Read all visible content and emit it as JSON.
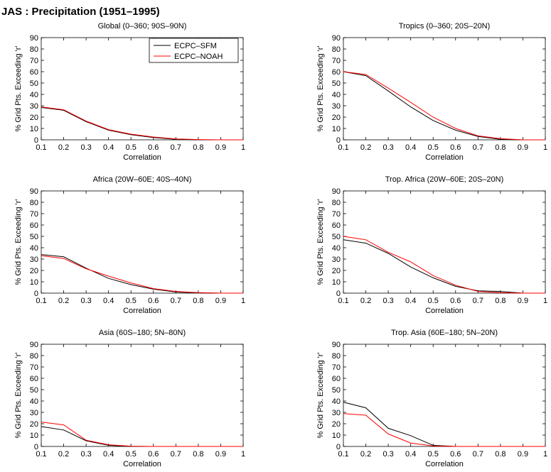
{
  "figure": {
    "title": "JAS : Precipitation (1951–1995)"
  },
  "chart_data": [
    {
      "type": "line",
      "title": "Global (0–360; 90S–90N)",
      "xlabel": "Correlation",
      "ylabel": "% Grid Pts. Exceeding 'r'",
      "xlim": [
        0.1,
        1
      ],
      "ylim": [
        0,
        90
      ],
      "xticks": [
        "0.1",
        "0.2",
        "0.3",
        "0.4",
        "0.5",
        "0.6",
        "0.7",
        "0.8",
        "0.9",
        "1"
      ],
      "yticks": [
        "0",
        "10",
        "20",
        "30",
        "40",
        "50",
        "60",
        "70",
        "80",
        "90"
      ],
      "legend": "top-right",
      "x": [
        0.1,
        0.2,
        0.3,
        0.4,
        0.5,
        0.6,
        0.7,
        0.8,
        0.9,
        1.0
      ],
      "series": [
        {
          "name": "ECPC–SFM",
          "color": "#000000",
          "values": [
            28.5,
            26,
            16,
            8.5,
            4.5,
            2,
            0.5,
            0,
            0,
            0
          ]
        },
        {
          "name": "ECPC–NOAH",
          "color": "#ff0000",
          "values": [
            29,
            26.5,
            16.5,
            9,
            5,
            2.5,
            0.8,
            0.2,
            0,
            0
          ]
        }
      ]
    },
    {
      "type": "line",
      "title": "Tropics (0–360; 20S–20N)",
      "xlabel": "Correlation",
      "ylabel": "% Grid Pts. Exceeding 'r'",
      "xlim": [
        0.1,
        1
      ],
      "ylim": [
        0,
        90
      ],
      "xticks": [
        "0.1",
        "0.2",
        "0.3",
        "0.4",
        "0.5",
        "0.6",
        "0.7",
        "0.8",
        "0.9",
        "1"
      ],
      "yticks": [
        "0",
        "10",
        "20",
        "30",
        "40",
        "50",
        "60",
        "70",
        "80",
        "90"
      ],
      "x": [
        0.1,
        0.2,
        0.3,
        0.4,
        0.5,
        0.6,
        0.7,
        0.8,
        0.9,
        1.0
      ],
      "series": [
        {
          "color": "#000000",
          "values": [
            60,
            56.5,
            43,
            29,
            17,
            8.5,
            3,
            0.5,
            0,
            0
          ]
        },
        {
          "color": "#ff0000",
          "values": [
            60,
            57.5,
            45.5,
            33,
            20,
            10,
            3.5,
            1,
            0,
            0
          ]
        }
      ]
    },
    {
      "type": "line",
      "title": "Africa (20W–60E; 40S–40N)",
      "xlabel": "Correlation",
      "ylabel": "% Grid Pts. Exceeding 'r'",
      "xlim": [
        0.1,
        1
      ],
      "ylim": [
        0,
        90
      ],
      "xticks": [
        "0.1",
        "0.2",
        "0.3",
        "0.4",
        "0.5",
        "0.6",
        "0.7",
        "0.8",
        "0.9",
        "1"
      ],
      "yticks": [
        "0",
        "10",
        "20",
        "30",
        "40",
        "50",
        "60",
        "70",
        "80",
        "90"
      ],
      "x": [
        0.1,
        0.2,
        0.3,
        0.4,
        0.5,
        0.6,
        0.7,
        0.8,
        0.9,
        1.0
      ],
      "series": [
        {
          "color": "#000000",
          "values": [
            34,
            32,
            22,
            13,
            7.5,
            3.5,
            1,
            0.3,
            0,
            0
          ]
        },
        {
          "color": "#ff0000",
          "values": [
            33,
            30.5,
            21.5,
            15,
            9,
            4,
            1.5,
            0.5,
            0,
            0
          ]
        }
      ]
    },
    {
      "type": "line",
      "title": "Trop. Africa (20W–60E; 20S–20N)",
      "xlabel": "Correlation",
      "ylabel": "% Grid Pts. Exceeding 'r'",
      "xlim": [
        0.1,
        1
      ],
      "ylim": [
        0,
        90
      ],
      "xticks": [
        "0.1",
        "0.2",
        "0.3",
        "0.4",
        "0.5",
        "0.6",
        "0.7",
        "0.8",
        "0.9",
        "1"
      ],
      "yticks": [
        "0",
        "10",
        "20",
        "30",
        "40",
        "50",
        "60",
        "70",
        "80",
        "90"
      ],
      "x": [
        0.1,
        0.2,
        0.3,
        0.4,
        0.5,
        0.6,
        0.7,
        0.8,
        0.9,
        1.0
      ],
      "series": [
        {
          "color": "#000000",
          "values": [
            47,
            44,
            35,
            23,
            13.5,
            6,
            2,
            1.5,
            0,
            0
          ]
        },
        {
          "color": "#ff0000",
          "values": [
            50,
            47,
            36,
            27.5,
            15.5,
            7,
            1.5,
            0.5,
            0,
            0
          ]
        }
      ]
    },
    {
      "type": "line",
      "title": "Asia (60S–180; 5N–80N)",
      "xlabel": "Correlation",
      "ylabel": "% Grid Pts. Exceeding 'r'",
      "xlim": [
        0.1,
        1
      ],
      "ylim": [
        0,
        90
      ],
      "xticks": [
        "0.1",
        "0.2",
        "0.3",
        "0.4",
        "0.5",
        "0.6",
        "0.7",
        "0.8",
        "0.9",
        "1"
      ],
      "yticks": [
        "0",
        "10",
        "20",
        "30",
        "40",
        "50",
        "60",
        "70",
        "80",
        "90"
      ],
      "x": [
        0.1,
        0.2,
        0.3,
        0.4,
        0.5,
        0.6,
        0.7,
        0.8,
        0.9,
        1.0
      ],
      "series": [
        {
          "color": "#000000",
          "values": [
            17.5,
            14.5,
            5,
            1,
            0,
            0,
            0,
            0,
            0,
            0
          ]
        },
        {
          "color": "#ff0000",
          "values": [
            21.5,
            19,
            5.5,
            1.5,
            0.2,
            0,
            0,
            0,
            0,
            0
          ]
        }
      ]
    },
    {
      "type": "line",
      "title": "Trop. Asia (60E–180; 5N–20N)",
      "xlabel": "Correlation",
      "ylabel": "% Grid Pts. Exceeding 'r'",
      "xlim": [
        0.1,
        1
      ],
      "ylim": [
        0,
        90
      ],
      "xticks": [
        "0.1",
        "0.2",
        "0.3",
        "0.4",
        "0.5",
        "0.6",
        "0.7",
        "0.8",
        "0.9",
        "1"
      ],
      "yticks": [
        "0",
        "10",
        "20",
        "30",
        "40",
        "50",
        "60",
        "70",
        "80",
        "90"
      ],
      "x": [
        0.1,
        0.2,
        0.3,
        0.4,
        0.5,
        0.6,
        0.7,
        0.8,
        0.9,
        1.0
      ],
      "series": [
        {
          "color": "#000000",
          "values": [
            39,
            34,
            16,
            9.5,
            1,
            0,
            0,
            0,
            0,
            0
          ]
        },
        {
          "color": "#ff0000",
          "values": [
            29,
            27.5,
            11,
            3,
            0.5,
            0,
            0,
            0,
            0,
            0
          ]
        }
      ]
    }
  ]
}
